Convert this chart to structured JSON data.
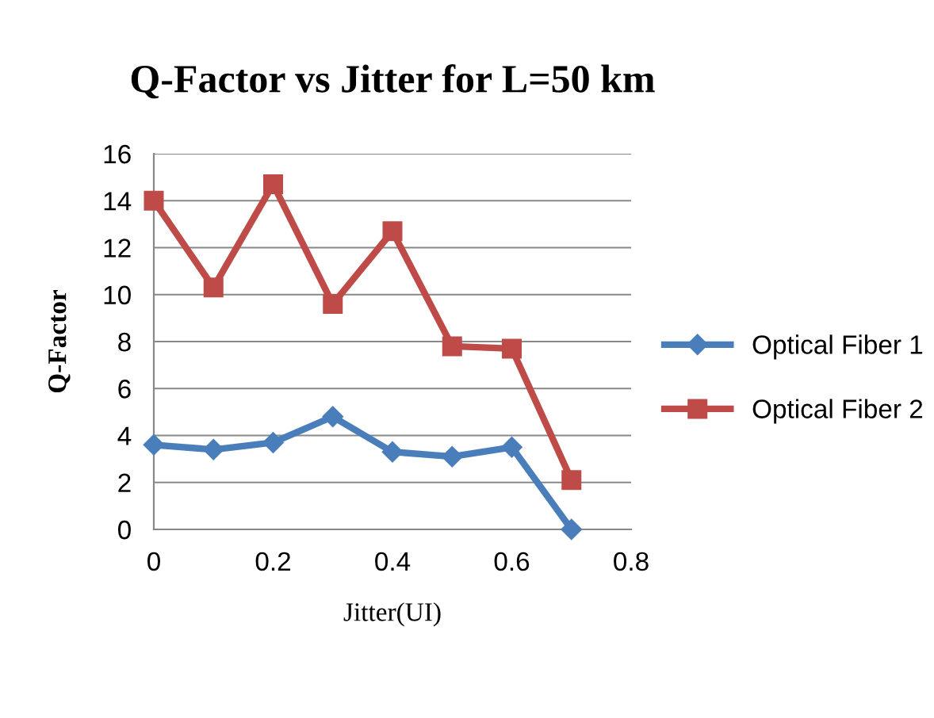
{
  "chart_data": {
    "type": "line",
    "title": "Q-Factor vs Jitter for L=50 km",
    "xlabel": "Jitter(UI)",
    "ylabel": "Q-Factor",
    "x": [
      0,
      0.1,
      0.2,
      0.3,
      0.4,
      0.5,
      0.6,
      0.7
    ],
    "series": [
      {
        "name": "Optical Fiber 1",
        "color": "#4a7ebb",
        "marker": "diamond",
        "values": [
          3.6,
          3.4,
          3.7,
          4.8,
          3.3,
          3.1,
          3.5,
          0
        ]
      },
      {
        "name": "Optical Fiber 2",
        "color": "#be4b48",
        "marker": "square",
        "values": [
          14.0,
          10.3,
          14.7,
          9.6,
          12.7,
          7.8,
          7.7,
          2.1
        ]
      }
    ],
    "xlim": [
      0,
      0.8
    ],
    "xticks": [
      0,
      0.2,
      0.4,
      0.6,
      0.8
    ],
    "ylim": [
      0,
      16
    ],
    "yticks": [
      0,
      2,
      4,
      6,
      8,
      10,
      12,
      14,
      16
    ],
    "grid": "y",
    "legend": "right",
    "line_style": "solid"
  }
}
